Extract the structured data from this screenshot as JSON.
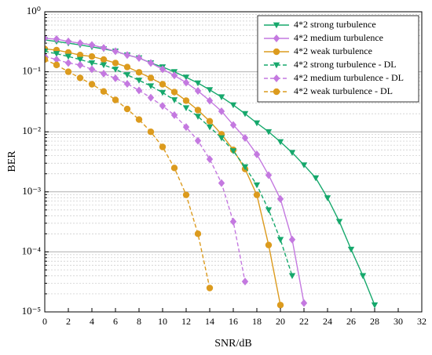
{
  "chart_data": {
    "type": "line",
    "x_label": "SNR/dB",
    "y_label": "BER",
    "log_y": true,
    "grid": true,
    "minor_grid": true,
    "legend": "upper right",
    "xlim": [
      0,
      32
    ],
    "xticks": [
      0,
      2,
      4,
      6,
      8,
      10,
      12,
      14,
      16,
      18,
      20,
      22,
      24,
      26,
      28,
      30,
      32
    ],
    "ylim": [
      1e-05,
      1
    ],
    "yticks": [
      {
        "value": 1e-05,
        "label": "10⁻⁵"
      },
      {
        "value": 0.0001,
        "label": "10⁻⁴"
      },
      {
        "value": 0.001,
        "label": "10⁻³"
      },
      {
        "value": 0.01,
        "label": "10⁻²"
      },
      {
        "value": 0.1,
        "label": "10⁻¹"
      },
      {
        "value": 1,
        "label": "10⁰"
      }
    ],
    "series": [
      {
        "name": "4*2 strong turbulence",
        "color": "#16a86c",
        "marker": "triangle-down",
        "dashed": false,
        "x": [
          0,
          1,
          2,
          3,
          4,
          5,
          6,
          7,
          8,
          9,
          10,
          11,
          12,
          13,
          14,
          15,
          16,
          17,
          18,
          19,
          20,
          21,
          22,
          23,
          24,
          25,
          26,
          27,
          28
        ],
        "values": [
          0.34,
          0.32,
          0.3,
          0.28,
          0.26,
          0.24,
          0.22,
          0.19,
          0.17,
          0.14,
          0.12,
          0.1,
          0.081,
          0.065,
          0.05,
          0.038,
          0.028,
          0.02,
          0.014,
          0.01,
          0.0068,
          0.0045,
          0.0028,
          0.0017,
          0.00079,
          0.00032,
          0.00011,
          4e-05,
          1.3e-05
        ]
      },
      {
        "name": "4*2 medium turbulence",
        "color": "#c479e0",
        "marker": "diamond",
        "dashed": false,
        "x": [
          0,
          1,
          2,
          3,
          4,
          5,
          6,
          7,
          8,
          9,
          10,
          11,
          12,
          13,
          14,
          15,
          16,
          17,
          18,
          19,
          20,
          21,
          22
        ],
        "values": [
          0.36,
          0.35,
          0.32,
          0.3,
          0.28,
          0.25,
          0.22,
          0.19,
          0.17,
          0.14,
          0.11,
          0.087,
          0.066,
          0.048,
          0.033,
          0.022,
          0.013,
          0.0079,
          0.0042,
          0.0019,
          0.00076,
          0.00016,
          1.4e-05
        ]
      },
      {
        "name": "4*2 weak turbulence",
        "color": "#dc9b1e",
        "marker": "circle",
        "dashed": false,
        "x": [
          0,
          1,
          2,
          3,
          4,
          5,
          6,
          7,
          8,
          9,
          10,
          11,
          12,
          13,
          14,
          15,
          16,
          17,
          18,
          19,
          20
        ],
        "values": [
          0.24,
          0.23,
          0.21,
          0.19,
          0.18,
          0.16,
          0.14,
          0.12,
          0.098,
          0.079,
          0.062,
          0.046,
          0.033,
          0.023,
          0.015,
          0.0091,
          0.005,
          0.0024,
          0.00089,
          0.00013,
          1.3e-05
        ]
      },
      {
        "name": "4*2 strong turbulence - DL",
        "color": "#16a86c",
        "marker": "triangle-down",
        "dashed": true,
        "x": [
          0,
          1,
          2,
          3,
          4,
          5,
          6,
          7,
          8,
          9,
          10,
          11,
          12,
          13,
          14,
          15,
          16,
          17,
          18,
          19,
          20,
          21
        ],
        "values": [
          0.22,
          0.2,
          0.18,
          0.16,
          0.14,
          0.13,
          0.11,
          0.089,
          0.072,
          0.058,
          0.045,
          0.034,
          0.025,
          0.018,
          0.012,
          0.0079,
          0.0048,
          0.0026,
          0.0013,
          0.0005,
          0.00016,
          4e-05
        ]
      },
      {
        "name": "4*2 medium turbulence - DL",
        "color": "#c479e0",
        "marker": "diamond",
        "dashed": true,
        "x": [
          0,
          1,
          2,
          3,
          4,
          5,
          6,
          7,
          8,
          9,
          10,
          11,
          12,
          13,
          14,
          15,
          16,
          17
        ],
        "values": [
          0.18,
          0.16,
          0.14,
          0.13,
          0.11,
          0.093,
          0.078,
          0.063,
          0.049,
          0.037,
          0.027,
          0.019,
          0.012,
          0.0071,
          0.0035,
          0.0014,
          0.00032,
          3.2e-05
        ]
      },
      {
        "name": "4*2 weak turbulence - DL",
        "color": "#dc9b1e",
        "marker": "circle",
        "dashed": true,
        "x": [
          0,
          1,
          2,
          3,
          4,
          5,
          6,
          7,
          8,
          9,
          10,
          11,
          12,
          13,
          14
        ],
        "values": [
          0.16,
          0.13,
          0.1,
          0.079,
          0.062,
          0.047,
          0.034,
          0.024,
          0.016,
          0.01,
          0.0056,
          0.0025,
          0.00089,
          0.0002,
          2.5e-05
        ]
      }
    ]
  }
}
